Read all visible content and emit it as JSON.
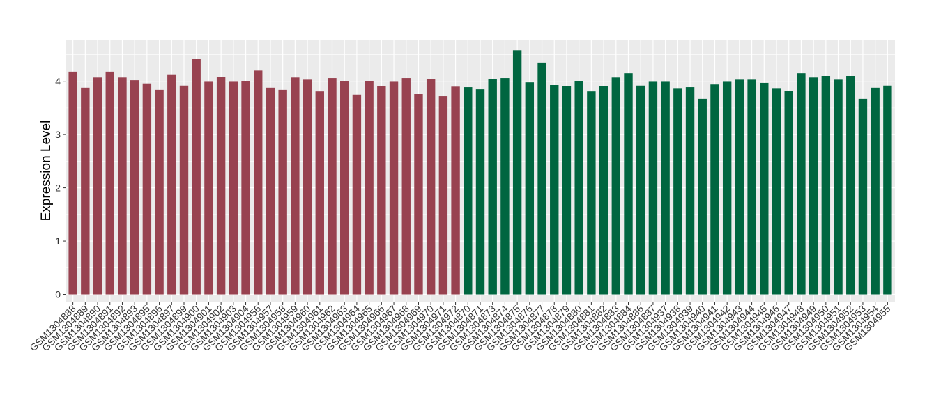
{
  "chart_data": {
    "type": "bar",
    "title": "",
    "xlabel": "",
    "ylabel": "Expression Level",
    "ylim": [
      -0.15,
      4.78
    ],
    "yticks": [
      0,
      1,
      2,
      3,
      4
    ],
    "grid": true,
    "legend": "none",
    "colors": {
      "group1": "#984250",
      "group2": "#006640",
      "panel_bg": "#ebebeb",
      "grid": "#ffffff"
    },
    "categories": [
      "GSM1304888",
      "GSM1304889",
      "GSM1304890",
      "GSM1304891",
      "GSM1304892",
      "GSM1304893",
      "GSM1304895",
      "GSM1304896",
      "GSM1304897",
      "GSM1304899",
      "GSM1304900",
      "GSM1304901",
      "GSM1304902",
      "GSM1304903",
      "GSM1304904",
      "GSM1304956",
      "GSM1304957",
      "GSM1304958",
      "GSM1304959",
      "GSM1304960",
      "GSM1304961",
      "GSM1304962",
      "GSM1304963",
      "GSM1304964",
      "GSM1304965",
      "GSM1304966",
      "GSM1304967",
      "GSM1304968",
      "GSM1304969",
      "GSM1304970",
      "GSM1304971",
      "GSM1304972",
      "GSM1304870",
      "GSM1304871",
      "GSM1304873",
      "GSM1304874",
      "GSM1304875",
      "GSM1304876",
      "GSM1304877",
      "GSM1304878",
      "GSM1304879",
      "GSM1304880",
      "GSM1304881",
      "GSM1304882",
      "GSM1304883",
      "GSM1304884",
      "GSM1304886",
      "GSM1304887",
      "GSM1304937",
      "GSM1304938",
      "GSM1304939",
      "GSM1304940",
      "GSM1304941",
      "GSM1304942",
      "GSM1304943",
      "GSM1304944",
      "GSM1304945",
      "GSM1304946",
      "GSM1304947",
      "GSM1304948",
      "GSM1304949",
      "GSM1304950",
      "GSM1304951",
      "GSM1304952",
      "GSM1304953",
      "GSM1304954",
      "GSM1304955"
    ],
    "values": [
      4.18,
      3.88,
      4.07,
      4.18,
      4.07,
      4.02,
      3.96,
      3.84,
      4.13,
      3.92,
      4.42,
      3.99,
      4.08,
      3.99,
      4.0,
      4.2,
      3.88,
      3.84,
      4.07,
      4.03,
      3.81,
      4.06,
      4.0,
      3.75,
      4.0,
      3.91,
      3.99,
      4.06,
      3.76,
      4.04,
      3.72,
      3.9,
      3.89,
      3.85,
      4.04,
      4.06,
      4.58,
      3.98,
      4.35,
      3.93,
      3.91,
      4.0,
      3.81,
      3.91,
      4.07,
      4.15,
      3.92,
      3.99,
      3.99,
      3.86,
      3.89,
      3.67,
      3.94,
      3.99,
      4.03,
      4.03,
      3.97,
      3.86,
      3.82,
      4.15,
      4.07,
      4.1,
      4.03,
      4.1,
      3.67,
      3.88,
      3.92
    ],
    "groups": [
      1,
      1,
      1,
      1,
      1,
      1,
      1,
      1,
      1,
      1,
      1,
      1,
      1,
      1,
      1,
      1,
      1,
      1,
      1,
      1,
      1,
      1,
      1,
      1,
      1,
      1,
      1,
      1,
      1,
      1,
      1,
      1,
      2,
      2,
      2,
      2,
      2,
      2,
      2,
      2,
      2,
      2,
      2,
      2,
      2,
      2,
      2,
      2,
      2,
      2,
      2,
      2,
      2,
      2,
      2,
      2,
      2,
      2,
      2,
      2,
      2,
      2,
      2,
      2,
      2,
      2,
      2
    ]
  }
}
